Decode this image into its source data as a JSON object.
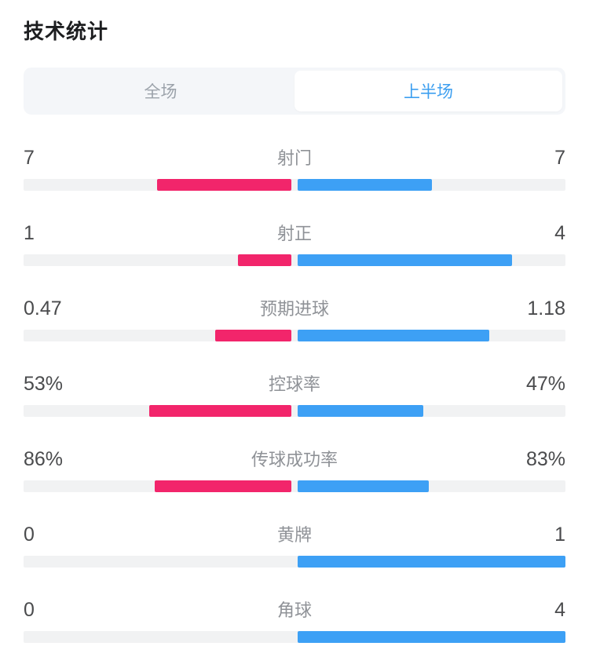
{
  "title": "技术统计",
  "tabs": {
    "full_label": "全场",
    "first_half_label": "上半场",
    "selected": "上半场"
  },
  "colors": {
    "home_bar": "#F2256B",
    "away_bar": "#3DA0F5",
    "bar_track": "#F1F2F3",
    "tab_background": "#F4F6F9",
    "tab_active_text": "#3D9FF0",
    "tab_inactive_text": "#9BA2AA"
  },
  "chart_data": {
    "type": "bar",
    "title": "技术统计",
    "subtitle_tab_selected": "上半场",
    "orientation": "horizontal-diverging-from-center",
    "bar_rule": "each side width = value / (home+away) of half-track; zero sum = empty",
    "series_names": [
      "home",
      "away"
    ],
    "rows": [
      {
        "label": "射门",
        "home_display": "7",
        "away_display": "7",
        "home": 7,
        "away": 7
      },
      {
        "label": "射正",
        "home_display": "1",
        "away_display": "4",
        "home": 1,
        "away": 4
      },
      {
        "label": "预期进球",
        "home_display": "0.47",
        "away_display": "1.18",
        "home": 0.47,
        "away": 1.18
      },
      {
        "label": "控球率",
        "home_display": "53%",
        "away_display": "47%",
        "home": 53,
        "away": 47
      },
      {
        "label": "传球成功率",
        "home_display": "86%",
        "away_display": "83%",
        "home": 86,
        "away": 83
      },
      {
        "label": "黄牌",
        "home_display": "0",
        "away_display": "1",
        "home": 0,
        "away": 1
      },
      {
        "label": "角球",
        "home_display": "0",
        "away_display": "4",
        "home": 0,
        "away": 4
      }
    ]
  }
}
